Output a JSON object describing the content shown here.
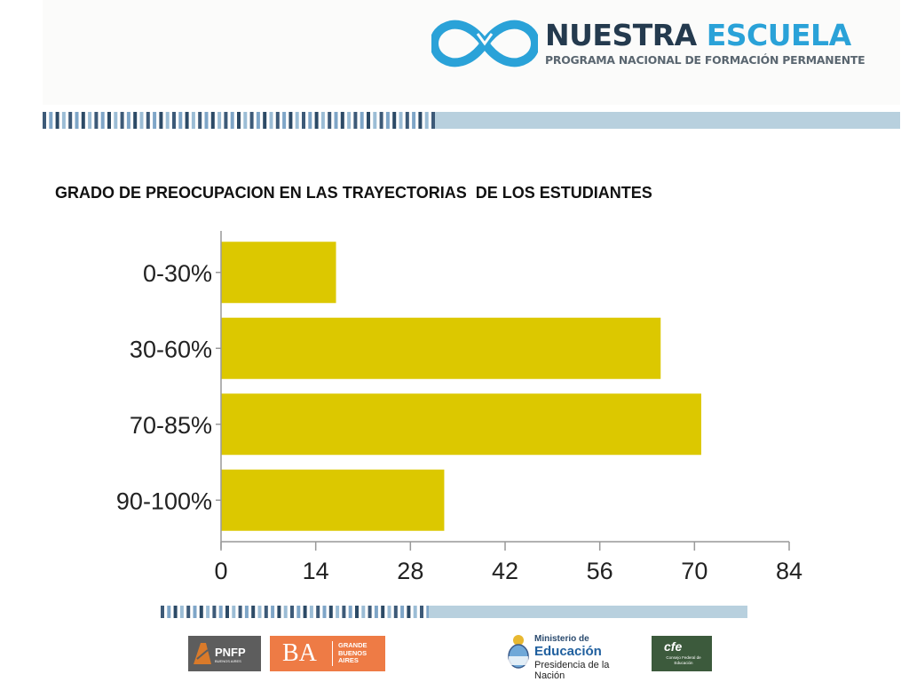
{
  "header": {
    "brand_word1": "NUESTRA",
    "brand_word2": "ESCUELA",
    "brand_subtitle": "PROGRAMA NACIONAL DE FORMACIÓN PERMANENTE",
    "brand_colors": {
      "dark": "#243a4e",
      "accent": "#2aa2d8"
    }
  },
  "title": "GRADO DE PREOCUPACION EN LAS TRAYECTORIAS  DE LOS ESTUDIANTES",
  "chart_data": {
    "type": "bar",
    "orientation": "horizontal",
    "title": "",
    "xlabel": "",
    "ylabel": "",
    "categories": [
      "0-30%",
      "30-60%",
      "70-85%",
      "90-100%"
    ],
    "values": [
      17,
      65,
      71,
      33
    ],
    "x_ticks": [
      0,
      14,
      28,
      42,
      56,
      70,
      84
    ],
    "xlim": [
      0,
      84
    ],
    "grid": false,
    "bar_color": "#dcc800"
  },
  "footer": {
    "pnfp": {
      "label": "PNFP",
      "sub": "BUENOS AIRES"
    },
    "ba": {
      "big": "BA",
      "small": [
        "GRANDE",
        "BUENOS",
        "AIRES"
      ]
    },
    "ministerio": {
      "line1": "Ministerio de",
      "line2": "Educación",
      "line3": "Presidencia de la Nación"
    },
    "cfe": {
      "big": "cfe",
      "small": "Consejo Federal de Educación"
    }
  }
}
